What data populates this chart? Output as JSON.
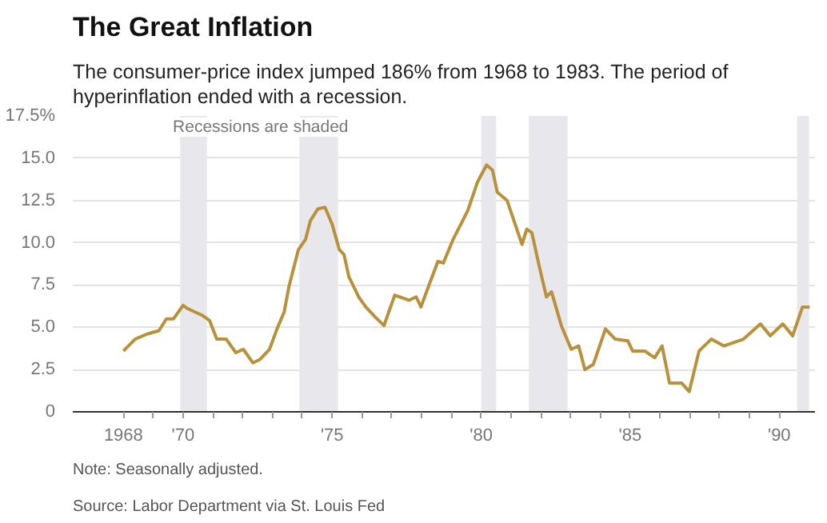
{
  "chart_data": {
    "type": "line",
    "title": "The Great Inflation",
    "subtitle": "The consumer-price index jumped 186% from 1968 to 1983. The period of hyperinflation ended with a recession.",
    "annotations": [
      "Recessions are shaded",
      "Note: Seasonally adjusted.",
      "Source: Labor Department via St. Louis Fed"
    ],
    "x": [
      1968.0,
      1968.39,
      1968.79,
      1969.19,
      1969.44,
      1969.68,
      1970.0,
      1970.16,
      1970.65,
      1970.89,
      1971.13,
      1971.45,
      1971.77,
      1972.02,
      1972.34,
      1972.58,
      1972.9,
      1973.15,
      1973.39,
      1973.55,
      1973.87,
      1974.11,
      1974.27,
      1974.52,
      1974.76,
      1975.0,
      1975.24,
      1975.4,
      1975.56,
      1975.89,
      1976.13,
      1976.45,
      1976.74,
      1977.1,
      1977.58,
      1977.82,
      1977.98,
      1978.23,
      1978.55,
      1978.73,
      1979.06,
      1979.55,
      1979.88,
      1980.18,
      1980.38,
      1980.54,
      1980.87,
      1981.37,
      1981.53,
      1981.7,
      1981.95,
      1982.19,
      1982.36,
      1982.69,
      1983.02,
      1983.27,
      1983.48,
      1983.76,
      1984.17,
      1984.5,
      1984.92,
      1985.08,
      1985.49,
      1985.82,
      1986.07,
      1986.32,
      1986.73,
      1986.98,
      1987.31,
      1987.72,
      1988.14,
      1988.8,
      1989.37,
      1989.7,
      1990.12,
      1990.45,
      1990.78,
      1991.02
    ],
    "series": [
      {
        "color": "#b8913a",
        "values": [
          3.6,
          4.3,
          4.6,
          4.8,
          5.5,
          5.5,
          6.3,
          6.1,
          5.7,
          5.4,
          4.3,
          4.3,
          3.5,
          3.7,
          2.9,
          3.1,
          3.7,
          4.9,
          5.9,
          7.4,
          9.6,
          10.2,
          11.3,
          12.0,
          12.1,
          11.1,
          9.6,
          9.3,
          8.0,
          6.8,
          6.2,
          5.6,
          5.1,
          6.9,
          6.6,
          6.8,
          6.2,
          7.4,
          8.9,
          8.8,
          10.2,
          11.9,
          13.6,
          14.6,
          14.3,
          13.0,
          12.5,
          9.9,
          10.8,
          10.6,
          8.6,
          6.8,
          7.1,
          5.1,
          3.7,
          3.9,
          2.5,
          2.8,
          4.9,
          4.3,
          4.2,
          3.6,
          3.6,
          3.2,
          3.9,
          1.7,
          1.7,
          1.2,
          3.6,
          4.3,
          3.9,
          4.3,
          5.2,
          4.5,
          5.2,
          4.5,
          6.2,
          6.2
        ]
      }
    ],
    "xlim": [
      1966.3,
      1991.2
    ],
    "xticks": [
      {
        "value": 1968,
        "label": "1968"
      },
      {
        "value": 1969,
        "label": null
      },
      {
        "value": 1970,
        "label": "'70"
      },
      {
        "value": 1971,
        "label": null
      },
      {
        "value": 1972,
        "label": null
      },
      {
        "value": 1973,
        "label": null
      },
      {
        "value": 1974,
        "label": null
      },
      {
        "value": 1975,
        "label": "'75"
      },
      {
        "value": 1976,
        "label": null
      },
      {
        "value": 1977,
        "label": null
      },
      {
        "value": 1978,
        "label": null
      },
      {
        "value": 1979,
        "label": null
      },
      {
        "value": 1980,
        "label": "'80"
      },
      {
        "value": 1981,
        "label": null
      },
      {
        "value": 1982,
        "label": null
      },
      {
        "value": 1983,
        "label": null
      },
      {
        "value": 1984,
        "label": null
      },
      {
        "value": 1985,
        "label": "'85"
      },
      {
        "value": 1986,
        "label": null
      },
      {
        "value": 1987,
        "label": null
      },
      {
        "value": 1988,
        "label": null
      },
      {
        "value": 1989,
        "label": null
      },
      {
        "value": 1990,
        "label": "'90"
      }
    ],
    "ylim": [
      0,
      17.5
    ],
    "yticks": [
      0,
      2.5,
      {
        "value": 5,
        "label": "5.0"
      },
      7.5,
      {
        "value": 10,
        "label": "10.0"
      },
      12.5,
      {
        "value": 15,
        "label": "15.0"
      },
      {
        "value": 17.5,
        "label": "17.5%"
      }
    ],
    "bands": [
      {
        "axis": "x",
        "from": 1969.9,
        "to": 1970.8,
        "color": "#e8e8ec"
      },
      {
        "axis": "x",
        "from": 1973.9,
        "to": 1975.2,
        "color": "#e8e8ec"
      },
      {
        "axis": "x",
        "from": 1980.0,
        "to": 1980.5,
        "color": "#e8e8ec"
      },
      {
        "axis": "x",
        "from": 1981.6,
        "to": 1982.9,
        "color": "#e8e8ec"
      },
      {
        "axis": "x",
        "from": 1990.6,
        "to": 1991.0,
        "color": "#e8e8ec"
      }
    ],
    "grid": "y",
    "marker": "none",
    "line_style": "solid"
  }
}
